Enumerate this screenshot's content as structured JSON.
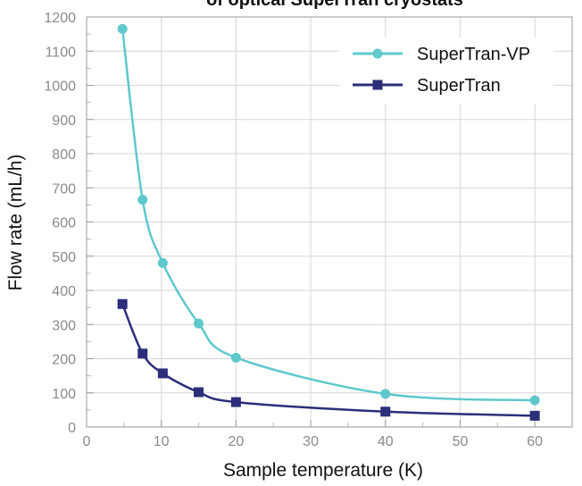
{
  "chart_data": {
    "type": "line",
    "title": "of optical SuperTran cryostats",
    "xlabel": "Sample temperature (K)",
    "ylabel": "Flow rate (mL/h)",
    "xlim": [
      0,
      65
    ],
    "ylim": [
      0,
      1200
    ],
    "xticks": [
      "0",
      "10",
      "20",
      "30",
      "40",
      "50",
      "60"
    ],
    "yticks": [
      "0",
      "100",
      "200",
      "300",
      "400",
      "500",
      "600",
      "700",
      "800",
      "900",
      "1000",
      "1100",
      "1200"
    ],
    "grid": true,
    "legend_position": "top-right",
    "series": [
      {
        "name": "SuperTran-VP",
        "color": "#5ec8cc",
        "marker": "circle",
        "x": [
          4.8,
          7.5,
          10.2,
          15,
          20,
          40,
          60
        ],
        "y": [
          1165,
          665,
          480,
          303,
          203,
          97,
          78
        ]
      },
      {
        "name": "SuperTran",
        "color": "#2b2f7a",
        "marker": "square",
        "x": [
          4.8,
          7.5,
          10.2,
          15,
          20,
          40,
          60
        ],
        "y": [
          360,
          215,
          157,
          102,
          73,
          45,
          33
        ]
      }
    ]
  }
}
